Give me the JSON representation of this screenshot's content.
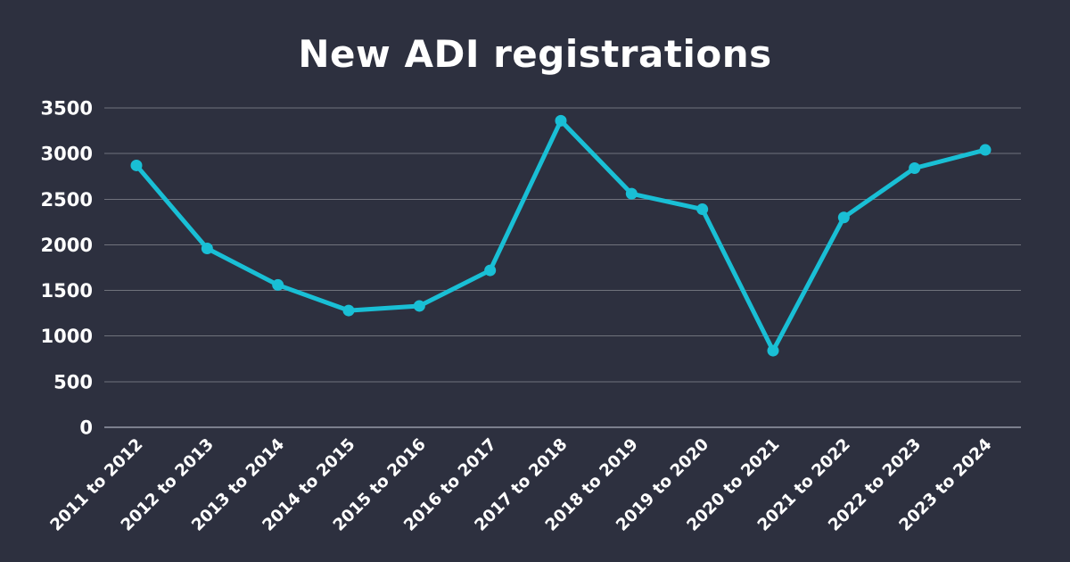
{
  "page": {
    "background_color": "#2d303f",
    "text_color": "#ffffff"
  },
  "chart_data": {
    "type": "line",
    "title": "New ADI registrations",
    "categories": [
      "2011 to 2012",
      "2012 to 2013",
      "2013 to 2014",
      "2014 to 2015",
      "2015 to 2016",
      "2016 to 2017",
      "2017 to 2018",
      "2018 to 2019",
      "2019 to 2020",
      "2020 to 2021",
      "2021 to 2022",
      "2022 to 2023",
      "2023 to 2024"
    ],
    "values": [
      2870,
      1960,
      1560,
      1280,
      1330,
      1720,
      3360,
      2560,
      2390,
      840,
      2300,
      2840,
      3040
    ],
    "xlabel": "",
    "ylabel": "",
    "ylim": [
      0,
      3500
    ],
    "yticks": [
      0,
      500,
      1000,
      1500,
      2000,
      2500,
      3000,
      3500
    ],
    "grid": true,
    "legend": false,
    "line_color": "#19bfd5",
    "marker": "circle",
    "marker_radius": 6.5,
    "line_width": 5,
    "gridline_color": "rgba(255,255,255,0.32)",
    "axis_line_color": "#7b7f8d",
    "label_color": "#ffffff",
    "x_label_rotation_deg": -45
  }
}
